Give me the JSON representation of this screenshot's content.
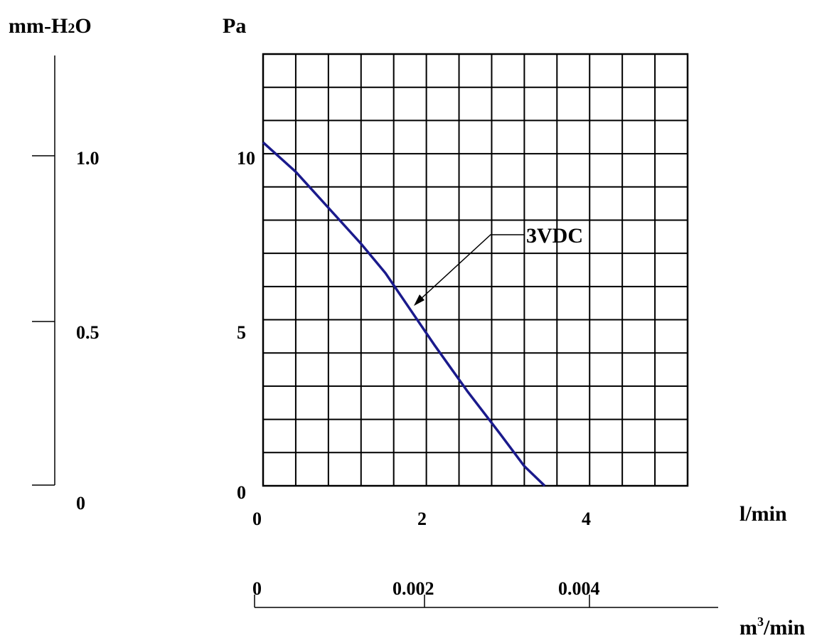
{
  "chart_data": {
    "type": "line",
    "title": "",
    "xlabel": "l/min",
    "ylabel": "Pa",
    "xlim": [
      0,
      5.2
    ],
    "ylim": [
      0,
      13.2
    ],
    "grid": true,
    "x_ticks": [
      "0",
      "2",
      "4"
    ],
    "y_ticks": [
      "0",
      "5",
      "10"
    ],
    "secondary_y_axis": {
      "label": "mm-H2O",
      "label_main": "mm-H",
      "label_sub": "2",
      "label_end": "O",
      "ticks": [
        "0",
        "0.5",
        "1.0"
      ]
    },
    "secondary_x_axis": {
      "label": "m3/min",
      "label_main": "m",
      "label_sup": "3",
      "label_end": "/min",
      "ticks": [
        "0",
        "0.002",
        "0.004"
      ]
    },
    "series": [
      {
        "name": "3VDC",
        "color": "#1a1a8c",
        "points": [
          [
            0.0,
            10.5
          ],
          [
            0.4,
            9.6
          ],
          [
            0.8,
            8.5
          ],
          [
            1.2,
            7.4
          ],
          [
            1.5,
            6.5
          ],
          [
            1.8,
            5.4
          ],
          [
            2.1,
            4.3
          ],
          [
            2.5,
            2.9
          ],
          [
            2.9,
            1.6
          ],
          [
            3.2,
            0.6
          ],
          [
            3.45,
            0.0
          ]
        ]
      }
    ],
    "annotations": [
      {
        "text": "3VDC",
        "points_to": [
          1.93,
          5.6
        ]
      }
    ]
  }
}
